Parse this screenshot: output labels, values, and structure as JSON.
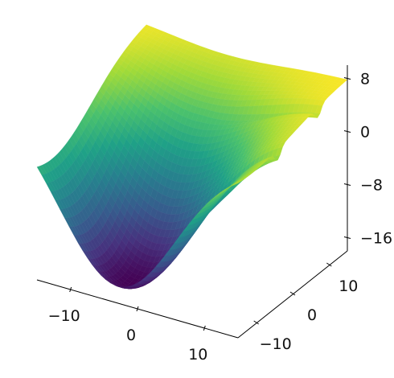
{
  "chart_data": {
    "type": "surface3d",
    "title": "",
    "xlabel": "",
    "ylabel": "",
    "zlabel": "",
    "colormap": "viridis",
    "colormap_stops": [
      "#440154",
      "#46327e",
      "#365c8d",
      "#277f8e",
      "#1fa187",
      "#4ac16d",
      "#a0da39",
      "#fde725"
    ],
    "grid": false,
    "xlim": [
      -15,
      15
    ],
    "ylim": [
      -15,
      15
    ],
    "zlim": [
      -18,
      10
    ],
    "x_ticks": [
      -10,
      0,
      10
    ],
    "y_ticks": [
      -10,
      0,
      10
    ],
    "z_ticks": [
      8,
      0,
      -8,
      -16
    ],
    "x_tick_labels": [
      "−10",
      "0",
      "10"
    ],
    "y_tick_labels": [
      "−10",
      "0",
      "10"
    ],
    "z_tick_labels": [
      "8",
      "0",
      "−8",
      "−16"
    ],
    "grid_size": [
      44,
      44
    ],
    "surface_description": {
      "min_value": -17,
      "plateau_value": 8,
      "bowl_center": [
        -3,
        -11
      ],
      "ridge_dips_y": [
        -4,
        7
      ]
    }
  }
}
